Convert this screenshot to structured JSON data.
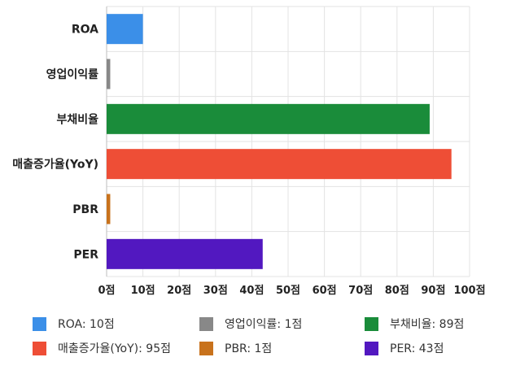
{
  "chart_data": {
    "type": "bar",
    "orientation": "horizontal",
    "categories": [
      "ROA",
      "영업이익률",
      "부채비율",
      "매출증가율(YoY)",
      "PBR",
      "PER"
    ],
    "values": [
      10,
      1,
      89,
      95,
      1,
      43
    ],
    "colors": [
      "#3b8fe8",
      "#888888",
      "#1a8c3a",
      "#ee4e36",
      "#c8721c",
      "#5218c0"
    ],
    "xlim": [
      0,
      100
    ],
    "xticks": [
      0,
      10,
      20,
      30,
      40,
      50,
      60,
      70,
      80,
      90,
      100
    ],
    "tick_suffix": "점",
    "grid": true,
    "legend_position": "bottom"
  },
  "legend": {
    "items": [
      {
        "label": "ROA: 10점",
        "color": "#3b8fe8"
      },
      {
        "label": "영업이익률: 1점",
        "color": "#888888"
      },
      {
        "label": "부채비율: 89점",
        "color": "#1a8c3a"
      },
      {
        "label": "매출증가율(YoY): 95점",
        "color": "#ee4e36"
      },
      {
        "label": "PBR: 1점",
        "color": "#c8721c"
      },
      {
        "label": "PER: 43점",
        "color": "#5218c0"
      }
    ]
  }
}
